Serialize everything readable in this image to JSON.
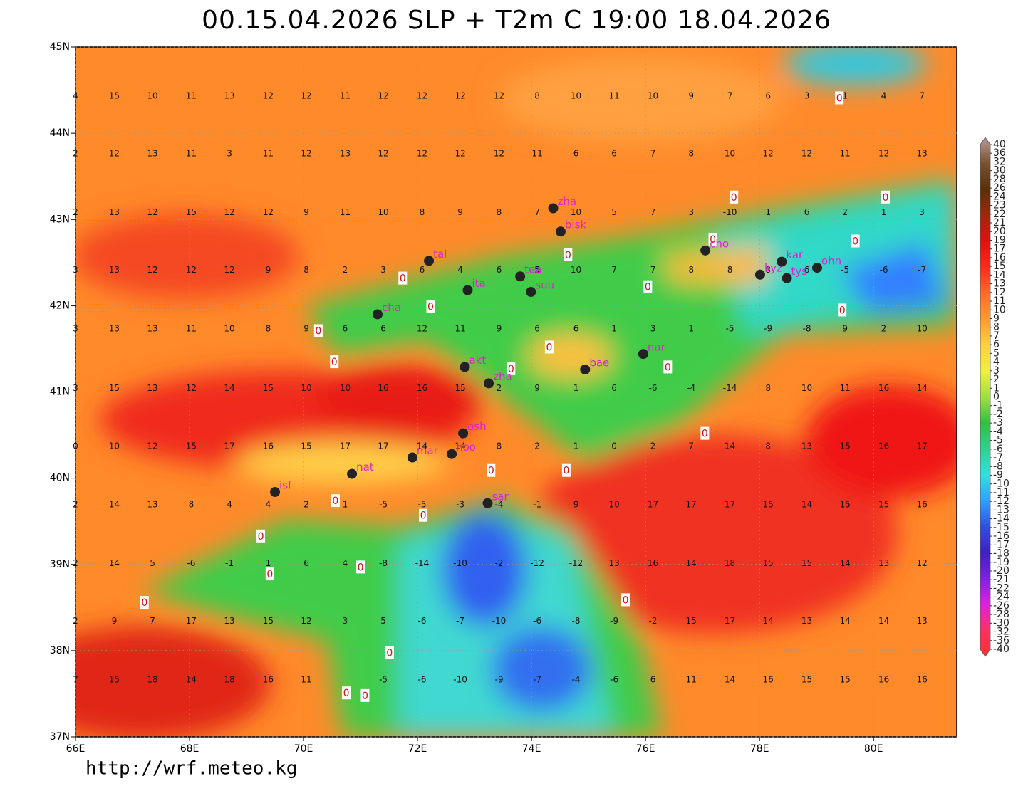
{
  "map": {
    "title": "00.15.04.2026 SLP + T2m C 19:00 18.04.2026",
    "footer": "http://wrf.meteo.kg",
    "xlim": [
      66,
      81.46
    ],
    "ylim": [
      37,
      45
    ],
    "xticks": [
      {
        "value": 66,
        "label": "66E"
      },
      {
        "value": 68,
        "label": "68E"
      },
      {
        "value": 70,
        "label": "70E"
      },
      {
        "value": 72,
        "label": "72E"
      },
      {
        "value": 74,
        "label": "74E"
      },
      {
        "value": 76,
        "label": "76E"
      },
      {
        "value": 78,
        "label": "78E"
      },
      {
        "value": 80,
        "label": "80E"
      }
    ],
    "yticks": [
      {
        "value": 37,
        "label": "37N"
      },
      {
        "value": 38,
        "label": "38N"
      },
      {
        "value": 39,
        "label": "39N"
      },
      {
        "value": 40,
        "label": "40N"
      },
      {
        "value": 41,
        "label": "41N"
      },
      {
        "value": 42,
        "label": "42N"
      },
      {
        "value": 43,
        "label": "43N"
      },
      {
        "value": 44,
        "label": "44N"
      },
      {
        "value": 45,
        "label": "45N"
      }
    ],
    "grid": {
      "lons": [
        66.0,
        66.68,
        67.35,
        68.03,
        68.7,
        69.38,
        70.05,
        70.73,
        71.4,
        72.08,
        72.75,
        73.43,
        74.1,
        74.78,
        75.45,
        76.13,
        76.8,
        77.48,
        78.15,
        78.83,
        79.5,
        80.18,
        80.85
      ],
      "lats": [
        44.43,
        43.76,
        43.08,
        42.41,
        41.73,
        41.04,
        40.37,
        39.69,
        39.01,
        38.34,
        37.66
      ],
      "values": [
        [
          4,
          15,
          10,
          11,
          13,
          12,
          12,
          11,
          12,
          12,
          12,
          12,
          8,
          10,
          11,
          10,
          9,
          7,
          6,
          3,
          1,
          4,
          7
        ],
        [
          2,
          12,
          13,
          11,
          3,
          11,
          12,
          13,
          12,
          12,
          12,
          12,
          11,
          6,
          6,
          7,
          8,
          10,
          12,
          12,
          11,
          12,
          13
        ],
        [
          2,
          13,
          12,
          15,
          12,
          12,
          9,
          11,
          10,
          8,
          9,
          8,
          7,
          10,
          5,
          7,
          3,
          -10,
          1,
          6,
          2,
          1,
          3
        ],
        [
          3,
          13,
          12,
          12,
          12,
          9,
          8,
          2,
          3,
          6,
          4,
          6,
          5,
          10,
          7,
          7,
          8,
          8,
          8,
          6,
          -5,
          -6,
          -7
        ],
        [
          3,
          13,
          13,
          11,
          10,
          8,
          9,
          6,
          6,
          12,
          11,
          9,
          6,
          6,
          1,
          3,
          1,
          -5,
          -9,
          -8,
          9,
          2,
          10
        ],
        [
          3,
          15,
          13,
          12,
          14,
          15,
          10,
          10,
          16,
          16,
          15,
          2,
          9,
          1,
          6,
          -6,
          -4,
          -14,
          8,
          10,
          11,
          16,
          14
        ],
        [
          0,
          10,
          12,
          15,
          17,
          16,
          15,
          17,
          17,
          14,
          14,
          8,
          2,
          1,
          0,
          2,
          7,
          14,
          8,
          13,
          15,
          16,
          17
        ],
        [
          2,
          14,
          13,
          8,
          4,
          4,
          2,
          1,
          -5,
          -5,
          -3,
          -4,
          -1,
          9,
          10,
          17,
          17,
          17,
          15,
          14,
          15,
          15,
          16
        ],
        [
          2,
          14,
          5,
          -6,
          -1,
          1,
          6,
          4,
          -8,
          -14,
          -10,
          -2,
          -12,
          -12,
          13,
          16,
          14,
          18,
          15,
          15,
          14,
          13,
          12
        ],
        [
          2,
          9,
          7,
          17,
          13,
          15,
          12,
          3,
          5,
          -6,
          -7,
          -10,
          -6,
          -8,
          -9,
          -2,
          15,
          17,
          14,
          13,
          14,
          14,
          13
        ],
        [
          7,
          15,
          18,
          14,
          18,
          16,
          11,
          null,
          -5,
          -6,
          -10,
          -9,
          -7,
          -4,
          -6,
          6,
          11,
          14,
          16,
          15,
          15,
          16,
          16
        ]
      ]
    },
    "stations": [
      {
        "name": "zha",
        "lon": 74.38,
        "lat": 43.13
      },
      {
        "name": "bisk",
        "lon": 74.51,
        "lat": 42.86
      },
      {
        "name": "tal",
        "lon": 72.2,
        "lat": 42.52
      },
      {
        "name": "tea",
        "lon": 73.8,
        "lat": 42.34
      },
      {
        "name": "ita",
        "lon": 72.88,
        "lat": 42.18
      },
      {
        "name": "suu",
        "lon": 73.99,
        "lat": 42.16
      },
      {
        "name": "cha",
        "lon": 71.3,
        "lat": 41.9
      },
      {
        "name": "cho",
        "lon": 77.05,
        "lat": 42.64
      },
      {
        "name": "kyz",
        "lon": 78.01,
        "lat": 42.36
      },
      {
        "name": "kar",
        "lon": 78.39,
        "lat": 42.51
      },
      {
        "name": "tys",
        "lon": 78.48,
        "lat": 42.32
      },
      {
        "name": "ohn",
        "lon": 79.01,
        "lat": 42.44
      },
      {
        "name": "nar",
        "lon": 75.96,
        "lat": 41.44
      },
      {
        "name": "bae",
        "lon": 74.94,
        "lat": 41.26
      },
      {
        "name": "akt",
        "lon": 72.83,
        "lat": 41.29
      },
      {
        "name": "zha",
        "lon": 73.25,
        "lat": 41.1
      },
      {
        "name": "osh",
        "lon": 72.8,
        "lat": 40.52
      },
      {
        "name": "hoo",
        "lon": 72.6,
        "lat": 40.28
      },
      {
        "name": "mar",
        "lon": 71.91,
        "lat": 40.24
      },
      {
        "name": "nat",
        "lon": 70.85,
        "lat": 40.05
      },
      {
        "name": "isf",
        "lon": 69.5,
        "lat": 39.84
      },
      {
        "name": "sar",
        "lon": 73.23,
        "lat": 39.71
      }
    ],
    "contour_labels": [
      {
        "value": 0,
        "lon": 79.4,
        "lat": 44.41
      },
      {
        "value": 0,
        "lon": 77.55,
        "lat": 43.26
      },
      {
        "value": 0,
        "lon": 80.21,
        "lat": 43.26
      },
      {
        "value": 0,
        "lon": 77.18,
        "lat": 42.77
      },
      {
        "value": 0,
        "lon": 79.68,
        "lat": 42.75
      },
      {
        "value": 0,
        "lon": 74.64,
        "lat": 42.59
      },
      {
        "value": 0,
        "lon": 71.74,
        "lat": 42.32
      },
      {
        "value": 0,
        "lon": 76.04,
        "lat": 42.22
      },
      {
        "value": 0,
        "lon": 72.23,
        "lat": 41.99
      },
      {
        "value": 0,
        "lon": 79.45,
        "lat": 41.95
      },
      {
        "value": 0,
        "lon": 70.26,
        "lat": 41.71
      },
      {
        "value": 0,
        "lon": 74.31,
        "lat": 41.52
      },
      {
        "value": 0,
        "lon": 70.54,
        "lat": 41.35
      },
      {
        "value": 0,
        "lon": 73.64,
        "lat": 41.27
      },
      {
        "value": 0,
        "lon": 76.39,
        "lat": 41.29
      },
      {
        "value": 0,
        "lon": 77.04,
        "lat": 40.52
      },
      {
        "value": 0,
        "lon": 73.29,
        "lat": 40.09
      },
      {
        "value": 0,
        "lon": 74.61,
        "lat": 40.09
      },
      {
        "value": 0,
        "lon": 70.56,
        "lat": 39.74
      },
      {
        "value": 0,
        "lon": 72.1,
        "lat": 39.57
      },
      {
        "value": 0,
        "lon": 69.25,
        "lat": 39.33
      },
      {
        "value": 0,
        "lon": 69.41,
        "lat": 38.89
      },
      {
        "value": 0,
        "lon": 71.0,
        "lat": 38.97
      },
      {
        "value": 0,
        "lon": 67.21,
        "lat": 38.56
      },
      {
        "value": 0,
        "lon": 75.65,
        "lat": 38.59
      },
      {
        "value": 0,
        "lon": 71.51,
        "lat": 37.98
      },
      {
        "value": 0,
        "lon": 70.75,
        "lat": 37.51
      },
      {
        "value": 0,
        "lon": 71.08,
        "lat": 37.48
      }
    ],
    "colorbar": {
      "labels": [
        40,
        36,
        32,
        30,
        28,
        26,
        24,
        23,
        22,
        21,
        20,
        19,
        17,
        16,
        15,
        14,
        13,
        12,
        11,
        10,
        9,
        8,
        7,
        6,
        5,
        4,
        3,
        2,
        1,
        0,
        -1,
        -2,
        -3,
        -4,
        -5,
        -6,
        -7,
        -8,
        -9,
        -10,
        -11,
        -12,
        -13,
        -14,
        -15,
        -16,
        -17,
        -18,
        -19,
        -20,
        -21,
        -22,
        -24,
        -26,
        -28,
        -30,
        -32,
        -36,
        -40
      ],
      "colors": [
        "#b89a96",
        "#7a5230",
        "#5a3008",
        "#a0280a",
        "#e01010",
        "#ff2a1a",
        "#ff6a28",
        "#ff9a30",
        "#ffd040",
        "#f0f040",
        "#a0e040",
        "#30c040",
        "#30d090",
        "#30e0e0",
        "#30a0ff",
        "#3050e0",
        "#4020c0",
        "#8020e0",
        "#e020e0",
        "#ff3060",
        "#ff3030"
      ]
    }
  }
}
